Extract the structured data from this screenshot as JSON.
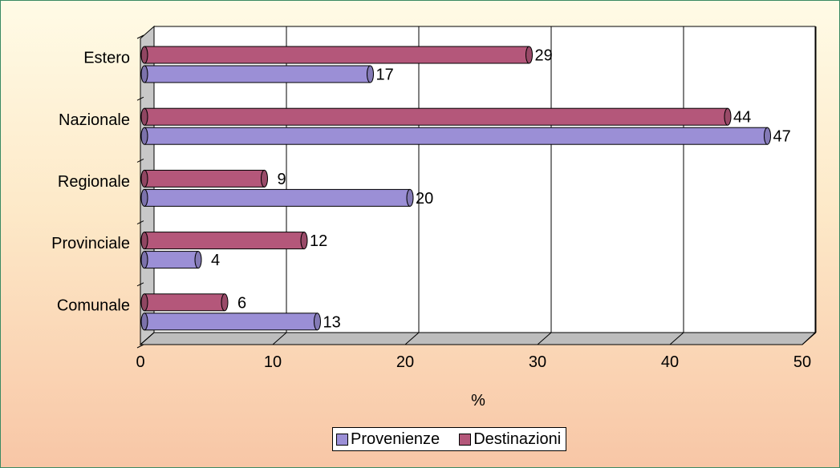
{
  "chart_data": {
    "type": "bar",
    "orientation": "horizontal",
    "categories": [
      "Comunale",
      "Provinciale",
      "Regionale",
      "Nazionale",
      "Estero"
    ],
    "series": [
      {
        "name": "Provenienze",
        "values": [
          13,
          4,
          20,
          47,
          17
        ],
        "color": "#9b8fd6"
      },
      {
        "name": "Destinazioni",
        "values": [
          6,
          12,
          9,
          44,
          29
        ],
        "color": "#b4577a"
      }
    ],
    "xlabel": "%",
    "xlim": [
      0,
      50
    ],
    "xticks": [
      0,
      10,
      20,
      30,
      40,
      50
    ],
    "grid": true,
    "legend": "bottom",
    "background_gradient": [
      "#fffbe6",
      "#f8c6a6"
    ],
    "frame_color": "#3a8a63"
  }
}
